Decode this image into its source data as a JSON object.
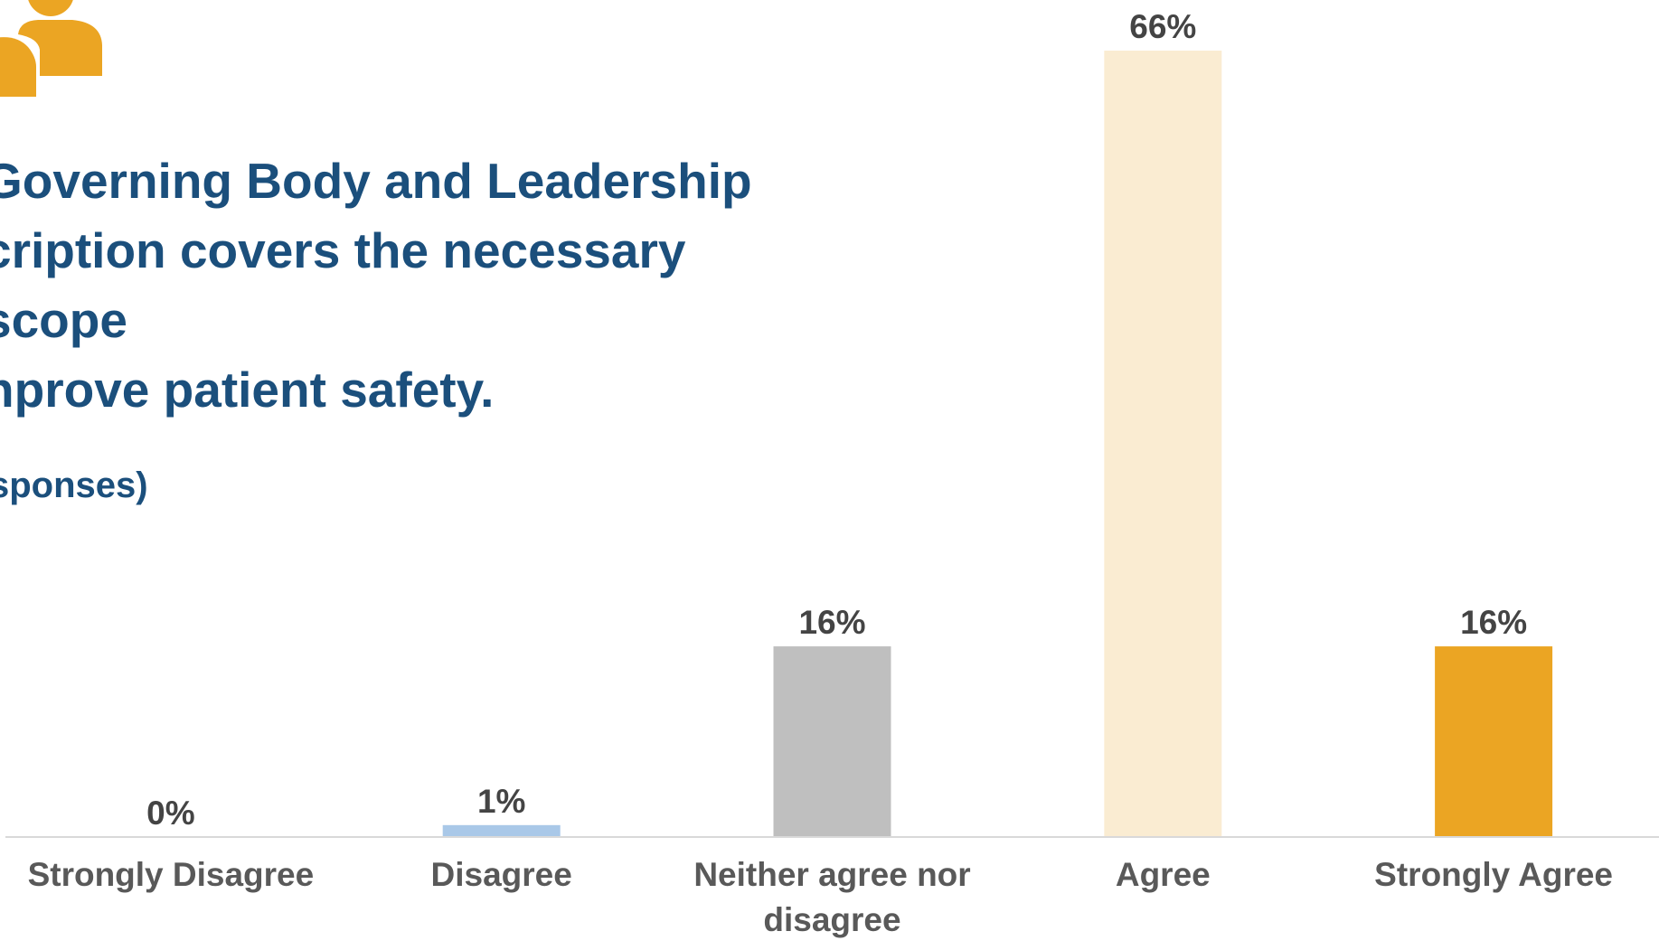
{
  "slide": {
    "question_lines": [
      "Governing Body and Leadership",
      "cription covers the necessary scope",
      "nprove patient safety."
    ],
    "responses_note": "sponses)",
    "icon": "people-icon",
    "icon_color": "#eba523",
    "title_color": "#1b4f7c"
  },
  "chart_data": {
    "type": "bar",
    "categories": [
      "Strongly Disagree",
      "Disagree",
      "Neither agree nor disagree",
      "Agree",
      "Strongly Agree"
    ],
    "values": [
      0,
      1,
      16,
      66,
      16
    ],
    "value_labels": [
      "0%",
      "1%",
      "16%",
      "66%",
      "16%"
    ],
    "colors": [
      "#bdd7ee",
      "#a9c8e8",
      "#bfbfbf",
      "#faecd2",
      "#eba523"
    ],
    "unit": "%",
    "ylim": [
      0,
      66
    ],
    "grid": false,
    "legend": "none"
  }
}
